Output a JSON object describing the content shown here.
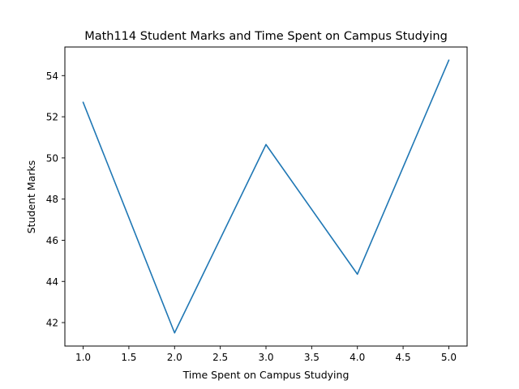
{
  "chart_data": {
    "type": "line",
    "title": "Math114 Student Marks and Time Spent on Campus Studying",
    "xlabel": "Time Spent on Campus Studying",
    "ylabel": "Student Marks",
    "x": [
      1.0,
      2.0,
      3.0,
      4.0,
      5.0
    ],
    "series": [
      {
        "values": [
          52.7,
          41.5,
          50.65,
          44.35,
          54.75
        ],
        "color": "#1f77b4"
      }
    ],
    "xticks": [
      "1.0",
      "1.5",
      "2.0",
      "2.5",
      "3.0",
      "3.5",
      "4.0",
      "4.5",
      "5.0"
    ],
    "yticks": [
      "42",
      "44",
      "46",
      "48",
      "50",
      "52",
      "54"
    ],
    "xlim": [
      0.8,
      5.2
    ],
    "ylim": [
      40.86,
      55.39
    ],
    "grid": false,
    "legend": false
  }
}
